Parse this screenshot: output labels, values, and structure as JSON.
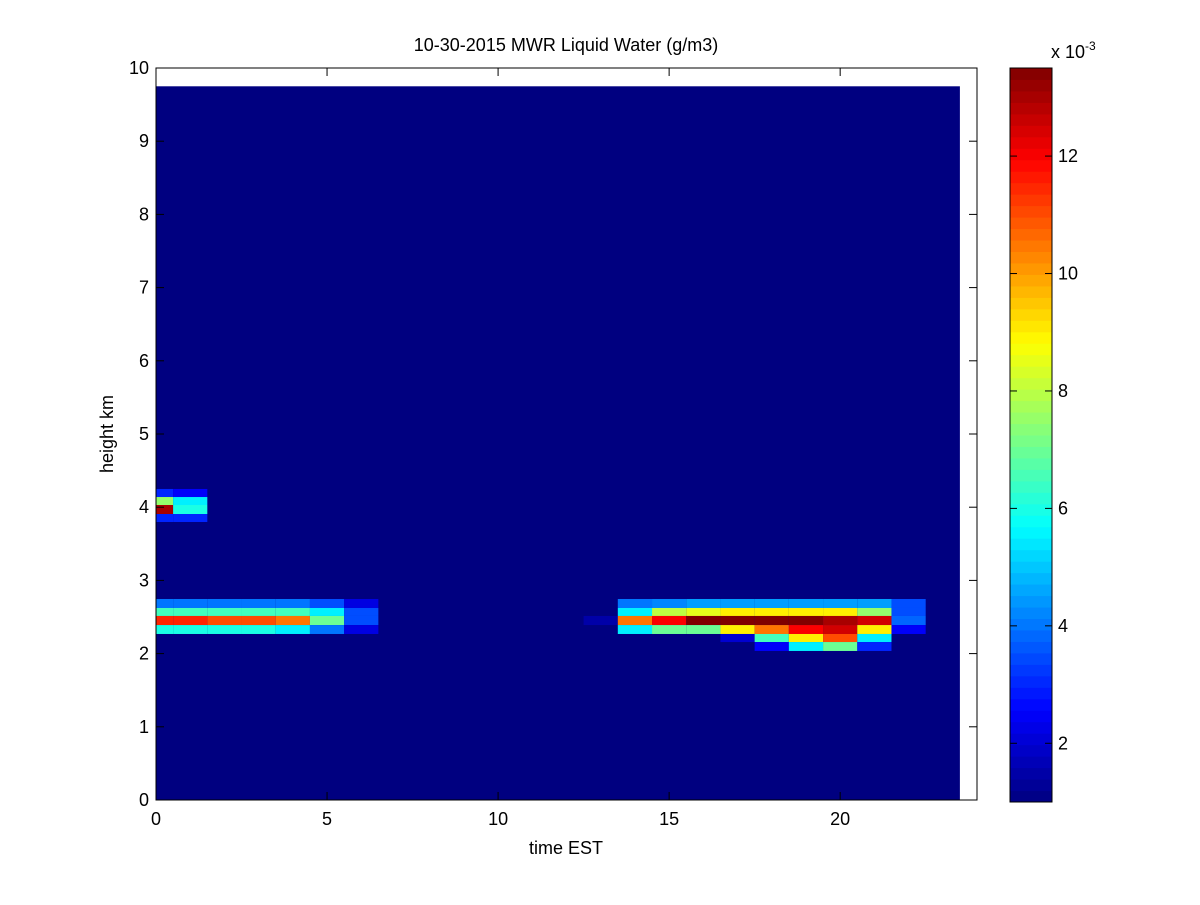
{
  "chart_data": {
    "type": "heatmap",
    "title": "10-30-2015 MWR Liquid Water (g/m3)",
    "x_label": "time EST",
    "y_label": "height km",
    "xlim": [
      0,
      24
    ],
    "ylim": [
      0,
      10
    ],
    "xticks": [
      0,
      5,
      10,
      15,
      20
    ],
    "yticks": [
      0,
      1,
      2,
      3,
      4,
      5,
      6,
      7,
      8,
      9,
      10
    ],
    "data_extent": {
      "x": [
        0,
        23.5
      ],
      "y": [
        0,
        9.75
      ]
    },
    "colormap": "jet",
    "x": [
      0,
      1,
      2,
      3,
      4,
      5,
      6,
      7,
      8,
      9,
      10,
      11,
      12,
      13,
      14,
      15,
      16,
      17,
      18,
      19,
      20,
      21,
      22,
      23
    ],
    "rows": [
      {
        "y": [
          4.139,
          4.249
        ],
        "values": [
          3,
          2.5,
          null,
          null,
          null,
          null,
          null,
          null,
          null,
          null,
          null,
          null,
          null,
          null,
          null,
          null,
          null,
          null,
          null,
          null,
          null,
          null,
          null,
          null
        ]
      },
      {
        "y": [
          4.03,
          4.139
        ],
        "values": [
          7.5,
          5.5,
          null,
          null,
          null,
          null,
          null,
          null,
          null,
          null,
          null,
          null,
          null,
          null,
          null,
          null,
          null,
          null,
          null,
          null,
          null,
          null,
          null,
          null
        ]
      },
      {
        "y": [
          3.907,
          4.03
        ],
        "values": [
          13,
          6,
          null,
          null,
          null,
          null,
          null,
          null,
          null,
          null,
          null,
          null,
          null,
          null,
          null,
          null,
          null,
          null,
          null,
          null,
          null,
          null,
          null,
          null
        ]
      },
      {
        "y": [
          3.798,
          3.907
        ],
        "values": [
          3,
          3,
          null,
          null,
          null,
          null,
          null,
          null,
          null,
          null,
          null,
          null,
          null,
          null,
          null,
          null,
          null,
          null,
          null,
          null,
          null,
          null,
          null,
          null
        ]
      },
      {
        "y": [
          2.623,
          2.746
        ],
        "values": [
          4,
          4,
          4,
          4,
          4,
          3.5,
          2.2,
          null,
          null,
          null,
          null,
          null,
          null,
          null,
          4,
          4.2,
          4.5,
          4.5,
          4.5,
          4.5,
          4.5,
          4.5,
          3.5,
          null
        ]
      },
      {
        "y": [
          2.514,
          2.623
        ],
        "values": [
          6.5,
          6.5,
          6.5,
          6.5,
          6.5,
          5.5,
          3.5,
          null,
          null,
          null,
          null,
          null,
          null,
          null,
          5.5,
          8,
          8.5,
          9,
          9,
          9,
          9,
          7.5,
          3.5,
          null
        ]
      },
      {
        "y": [
          2.39,
          2.514
        ],
        "values": [
          11.5,
          11.5,
          11,
          11,
          10.5,
          7,
          3.5,
          null,
          null,
          null,
          null,
          null,
          null,
          1.5,
          10.5,
          12,
          13.5,
          13.5,
          13.5,
          13.5,
          13,
          12.5,
          3.8,
          null
        ]
      },
      {
        "y": [
          2.268,
          2.39
        ],
        "values": [
          6,
          6,
          6,
          6,
          5.5,
          4,
          2.2,
          null,
          null,
          null,
          null,
          null,
          null,
          null,
          5.5,
          7,
          7,
          9,
          10.5,
          12,
          12.5,
          9,
          2.5,
          null
        ]
      },
      {
        "y": [
          2.158,
          2.268
        ],
        "values": [
          null,
          null,
          null,
          null,
          null,
          null,
          null,
          null,
          null,
          null,
          null,
          null,
          null,
          null,
          null,
          null,
          null,
          2,
          6.5,
          9,
          11,
          5.5,
          null,
          null
        ]
      },
      {
        "y": [
          2.036,
          2.158
        ],
        "values": [
          null,
          null,
          null,
          null,
          null,
          null,
          null,
          null,
          null,
          null,
          null,
          null,
          null,
          null,
          null,
          null,
          null,
          null,
          2.5,
          5.5,
          7,
          3,
          null,
          null
        ]
      }
    ],
    "colorbar": {
      "clim": [
        1,
        13.5
      ],
      "ticks": [
        2,
        4,
        6,
        8,
        10,
        12
      ],
      "multiplier_base": "x 10",
      "multiplier_exponent": "-3"
    }
  }
}
